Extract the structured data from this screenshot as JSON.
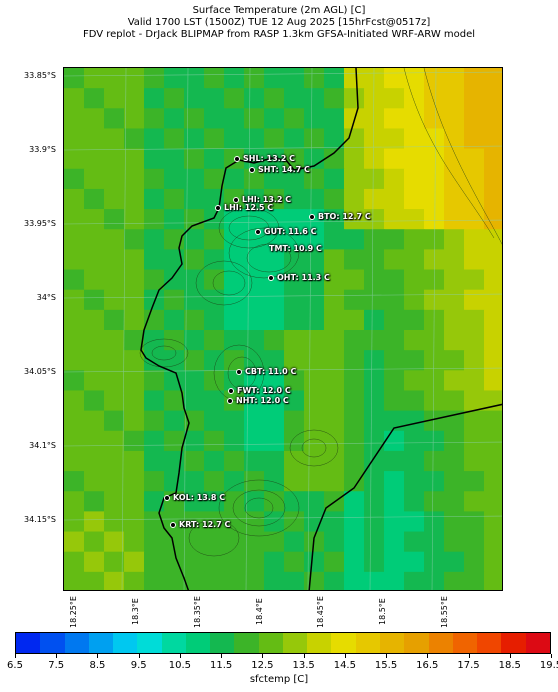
{
  "title": {
    "line1": "Surface Temperature (2m AGL) [C]",
    "line2": "Valid 1700 LST (1500Z) TUE 12 Aug 2025 [15hrFcst@0517z]",
    "line3": "FDV replot - DrJack BLIPMAP from RASP 1.3km GFSA-Initiated WRF-ARW model"
  },
  "map": {
    "lat_labels": [
      "33.85°S",
      "33.9°S",
      "33.95°S",
      "34°S",
      "34.05°S",
      "34.1°S",
      "34.15°S"
    ],
    "lon_labels": [
      "18.25°E",
      "18.3°E",
      "18.35°E",
      "18.4°E",
      "18.45°E",
      "18.5°E",
      "18.55°E"
    ],
    "stations": [
      {
        "code": "SHL",
        "label": "SHL: 13.2 C"
      },
      {
        "code": "SHT",
        "label": "SHT: 14.7 C"
      },
      {
        "code": "LHI",
        "label": "LHI: 13.2 C"
      },
      {
        "code": "LHI2",
        "label": "LHI: 12.5 C"
      },
      {
        "code": "BTO",
        "label": "BTO: 12.7 C"
      },
      {
        "code": "GUT",
        "label": "GUT: 11.6 C"
      },
      {
        "code": "TMT",
        "label": "TMT: 10.9 C"
      },
      {
        "code": "OHT",
        "label": "OHT: 11.3 C"
      },
      {
        "code": "CBT",
        "label": "CBT: 11.0 C"
      },
      {
        "code": "FWT",
        "label": "FWT: 12.0 C"
      },
      {
        "code": "NHT",
        "label": "NHT: 12.0 C"
      },
      {
        "code": "KOL",
        "label": "KOL: 13.8 C"
      },
      {
        "code": "KRT",
        "label": "KRT: 12.7 C"
      }
    ]
  },
  "colorbar": {
    "ticks": [
      "6.5",
      "7.5",
      "8.5",
      "9.5",
      "10.5",
      "11.5",
      "12.5",
      "13.5",
      "14.5",
      "15.5",
      "16.5",
      "17.5",
      "18.5",
      "19.5"
    ],
    "colors": [
      "#0028f0",
      "#0050f0",
      "#0078f0",
      "#00a0f0",
      "#00c8f0",
      "#00dcd8",
      "#00d8a0",
      "#00cc78",
      "#14b850",
      "#3cb428",
      "#64bc14",
      "#96c80a",
      "#c8d200",
      "#e6dc00",
      "#e6c800",
      "#e6b400",
      "#e6a000",
      "#ec8200",
      "#f06400",
      "#f04600",
      "#e61e00",
      "#dc0a14"
    ],
    "label": "sfctemp [C]"
  }
}
